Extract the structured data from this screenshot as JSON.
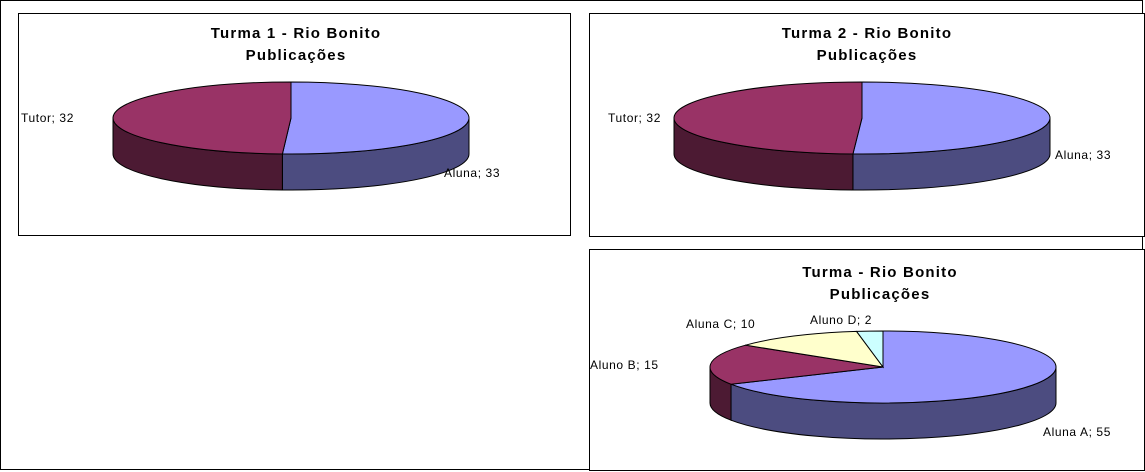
{
  "chart_data": [
    {
      "type": "pie",
      "title": "Turma 1 - Rio Bonito",
      "subtitle": "Publicações",
      "slices": [
        {
          "name": "Aluna",
          "value": 33,
          "label": "Aluna; 33",
          "color": "#9999ff",
          "side_color": "#4c4c80"
        },
        {
          "name": "Tutor",
          "value": 32,
          "label": "Tutor; 32",
          "color": "#993366",
          "side_color": "#4c1a33"
        }
      ]
    },
    {
      "type": "pie",
      "title": "Turma 2 - Rio Bonito",
      "subtitle": "Publicações",
      "slices": [
        {
          "name": "Aluna",
          "value": 33,
          "label": "Aluna; 33",
          "color": "#9999ff",
          "side_color": "#4c4c80"
        },
        {
          "name": "Tutor",
          "value": 32,
          "label": "Tutor; 32",
          "color": "#993366",
          "side_color": "#4c1a33"
        }
      ]
    },
    {
      "type": "pie",
      "title": "Turma - Rio Bonito",
      "subtitle": "Publicações",
      "slices": [
        {
          "name": "Aluna A",
          "value": 55,
          "label": "Aluna A; 55",
          "color": "#9999ff",
          "side_color": "#4c4c80"
        },
        {
          "name": "Aluno B",
          "value": 15,
          "label": "Aluno B; 15",
          "color": "#993366",
          "side_color": "#4c1a33"
        },
        {
          "name": "Aluna C",
          "value": 10,
          "label": "Aluna C; 10",
          "color": "#ffffcc",
          "side_color": "#808066"
        },
        {
          "name": "Aluno D",
          "value": 2,
          "label": "Aluno D; 2",
          "color": "#ccffff",
          "side_color": "#668080"
        }
      ]
    }
  ]
}
